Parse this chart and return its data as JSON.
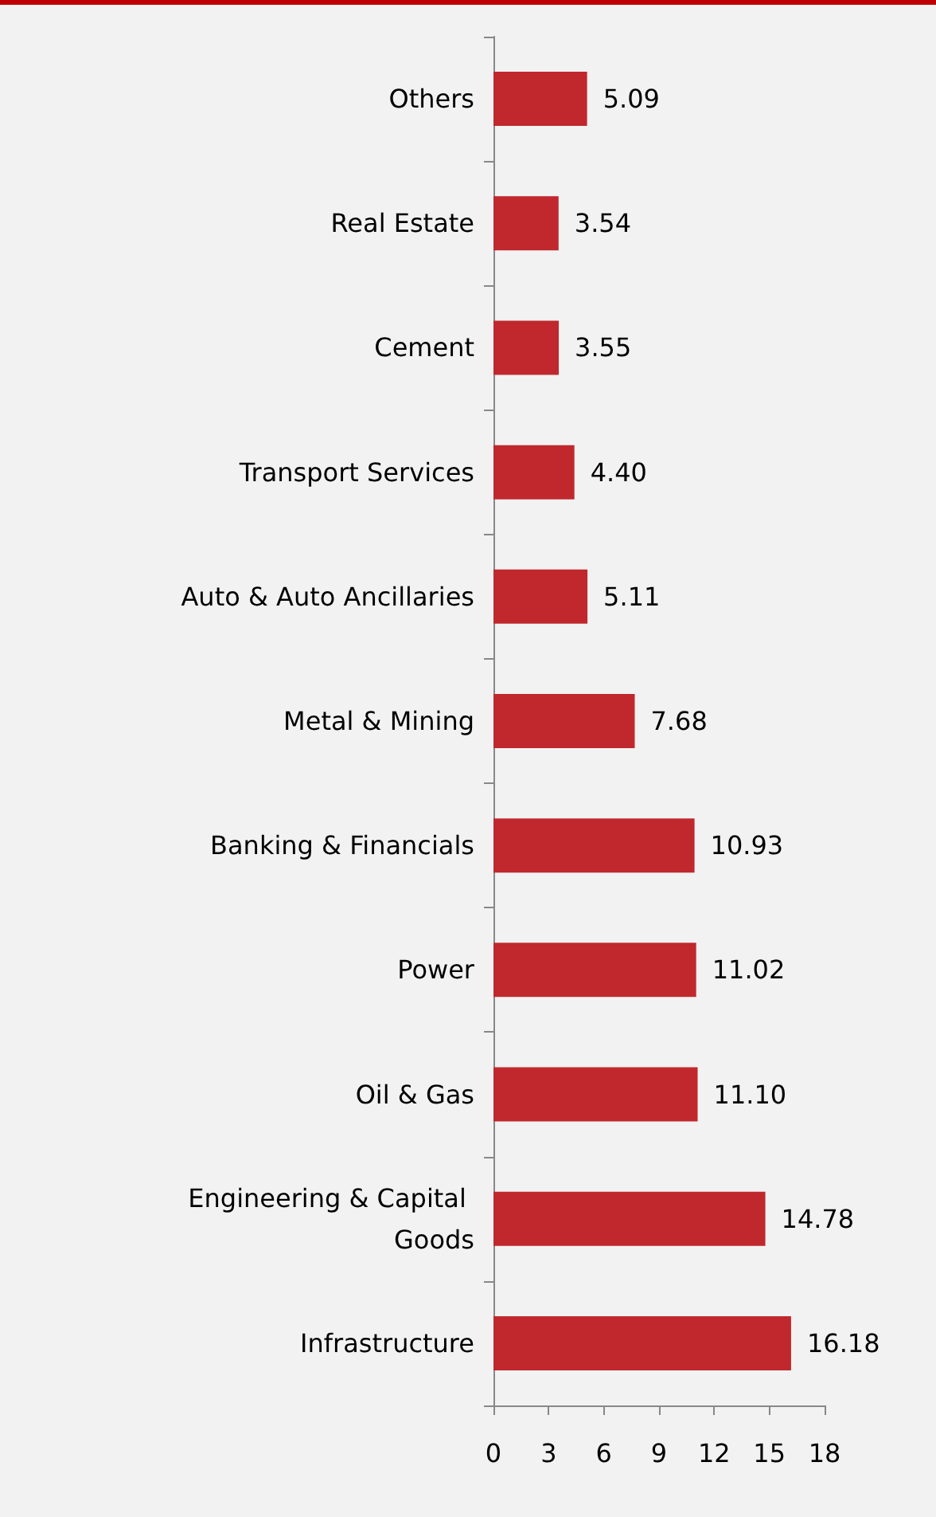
{
  "chart_data": {
    "type": "bar",
    "orientation": "horizontal",
    "categories": [
      "Others",
      "Real Estate",
      "Cement",
      "Transport Services",
      "Auto & Auto Ancillaries",
      "Metal & Mining",
      "Banking & Financials",
      "Power",
      "Oil & Gas",
      "Engineering & Capital Goods",
      "Infrastructure"
    ],
    "values": [
      5.09,
      3.54,
      3.55,
      4.4,
      5.11,
      7.68,
      10.93,
      11.02,
      11.1,
      14.78,
      16.18
    ],
    "value_labels": [
      "5.09",
      "3.54",
      "3.55",
      "4.40",
      "5.11",
      "7.68",
      "10.93",
      "11.02",
      "11.10",
      "14.78",
      "16.18"
    ],
    "color": "#c0282d",
    "xlim": [
      0,
      18
    ],
    "xticks": [
      0,
      3,
      6,
      9,
      12,
      15,
      18
    ],
    "grid": false
  }
}
